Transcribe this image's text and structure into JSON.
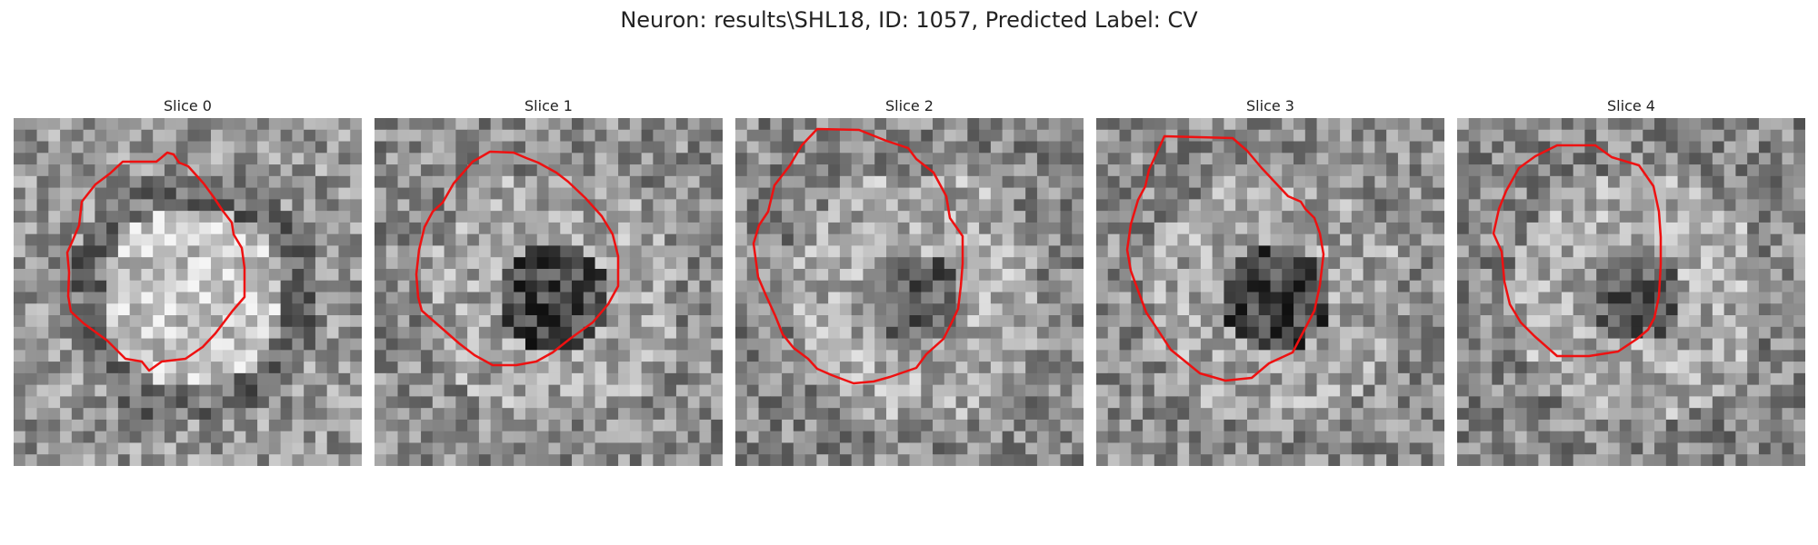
{
  "figure": {
    "title": "Neuron: results\\SHL18, ID: 1057, Predicted Label: CV"
  },
  "panels": [
    {
      "title": "Slice 0",
      "seed": 11,
      "center_tone": "bright"
    },
    {
      "title": "Slice 1",
      "seed": 23,
      "center_tone": "dark"
    },
    {
      "title": "Slice 2",
      "seed": 37,
      "center_tone": "mixed"
    },
    {
      "title": "Slice 3",
      "seed": 51,
      "center_tone": "dark"
    },
    {
      "title": "Slice 4",
      "seed": 67,
      "center_tone": "mixed"
    }
  ],
  "style": {
    "contour_color": "#ee1111",
    "grayscale": true
  }
}
